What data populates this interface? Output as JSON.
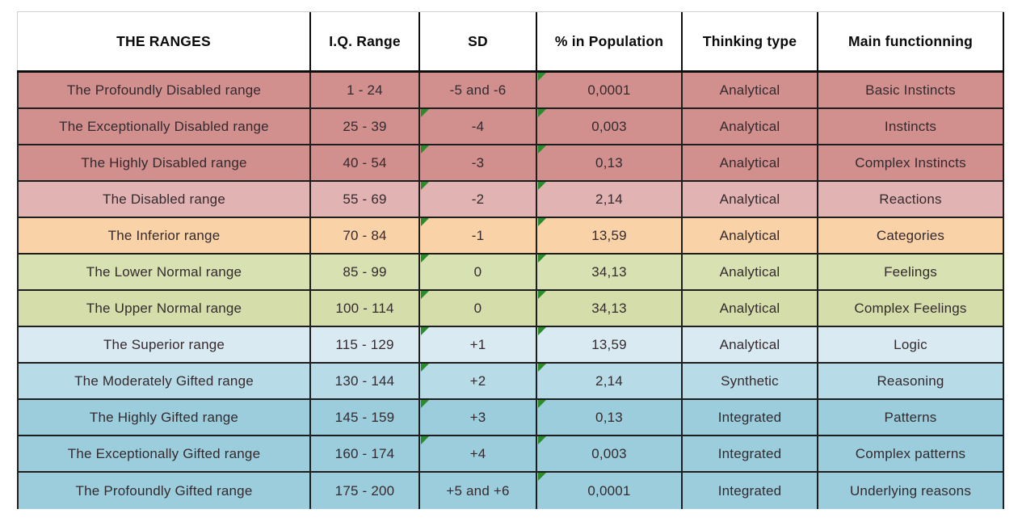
{
  "chart_data": {
    "type": "table",
    "columns": [
      "THE RANGES",
      "I.Q. Range",
      "SD",
      "% in Population",
      "Thinking type",
      "Main functionning"
    ],
    "rows": [
      {
        "range": "The Profoundly Disabled range",
        "iq": "1 - 24",
        "sd": "-5 and -6",
        "population_pct": "0,0001",
        "thinking": "Analytical",
        "functioning": "Basic Instincts",
        "row_color": "#D18F8D",
        "sd_marker": false,
        "pct_marker": true
      },
      {
        "range": "The Exceptionally Disabled range",
        "iq": "25 - 39",
        "sd": "-4",
        "population_pct": "0,003",
        "thinking": "Analytical",
        "functioning": "Instincts",
        "row_color": "#D18F8D",
        "sd_marker": true,
        "pct_marker": true
      },
      {
        "range": "The Highly Disabled range",
        "iq": "40 - 54",
        "sd": "-3",
        "population_pct": "0,13",
        "thinking": "Analytical",
        "functioning": "Complex Instincts",
        "row_color": "#D18F8D",
        "sd_marker": true,
        "pct_marker": true
      },
      {
        "range": "The Disabled range",
        "iq": "55 - 69",
        "sd": "-2",
        "population_pct": "2,14",
        "thinking": "Analytical",
        "functioning": "Reactions",
        "row_color": "#E2B3B3",
        "sd_marker": true,
        "pct_marker": true
      },
      {
        "range": "The Inferior range",
        "iq": "70 - 84",
        "sd": "-1",
        "population_pct": "13,59",
        "thinking": "Analytical",
        "functioning": "Categories",
        "row_color": "#FAD2A8",
        "sd_marker": true,
        "pct_marker": true
      },
      {
        "range": "The Lower Normal range",
        "iq": "85 - 99",
        "sd": "0",
        "population_pct": "34,13",
        "thinking": "Analytical",
        "functioning": "Feelings",
        "row_color": "#D7E1B2",
        "sd_marker": true,
        "pct_marker": true
      },
      {
        "range": "The Upper Normal range",
        "iq": "100 - 114",
        "sd": "0",
        "population_pct": "34,13",
        "thinking": "Analytical",
        "functioning": "Complex Feelings",
        "row_color": "#D5DEAB",
        "sd_marker": true,
        "pct_marker": true
      },
      {
        "range": "The Superior range",
        "iq": "115 - 129",
        "sd": "+1",
        "population_pct": "13,59",
        "thinking": "Analytical",
        "functioning": "Logic",
        "row_color": "#DAEAF2",
        "sd_marker": true,
        "pct_marker": true
      },
      {
        "range": "The Moderately Gifted range",
        "iq": "130 - 144",
        "sd": "+2",
        "population_pct": "2,14",
        "thinking": "Synthetic",
        "functioning": "Reasoning",
        "row_color": "#B7DBE7",
        "sd_marker": true,
        "pct_marker": true
      },
      {
        "range": "The Highly Gifted range",
        "iq": "145 - 159",
        "sd": "+3",
        "population_pct": "0,13",
        "thinking": "Integrated",
        "functioning": "Patterns",
        "row_color": "#9CCDDC",
        "sd_marker": true,
        "pct_marker": true
      },
      {
        "range": "The Exceptionally Gifted range",
        "iq": "160 - 174",
        "sd": "+4",
        "population_pct": "0,003",
        "thinking": "Integrated",
        "functioning": "Complex patterns",
        "row_color": "#9CCDDC",
        "sd_marker": true,
        "pct_marker": true
      },
      {
        "range": "The Profoundly Gifted range",
        "iq": "175 - 200",
        "sd": "+5 and +6",
        "population_pct": "0,0001",
        "thinking": "Integrated",
        "functioning": "Underlying reasons",
        "row_color": "#9CCDDC",
        "sd_marker": false,
        "pct_marker": true
      }
    ],
    "colors": {
      "header_background": "#FFFFFF",
      "border": "#1E1E1E",
      "header_underline": "#0D0D0D",
      "corner_marker": "#2B8C2B"
    },
    "layout": {
      "grid": "bordered table",
      "legend_position": "none"
    }
  }
}
